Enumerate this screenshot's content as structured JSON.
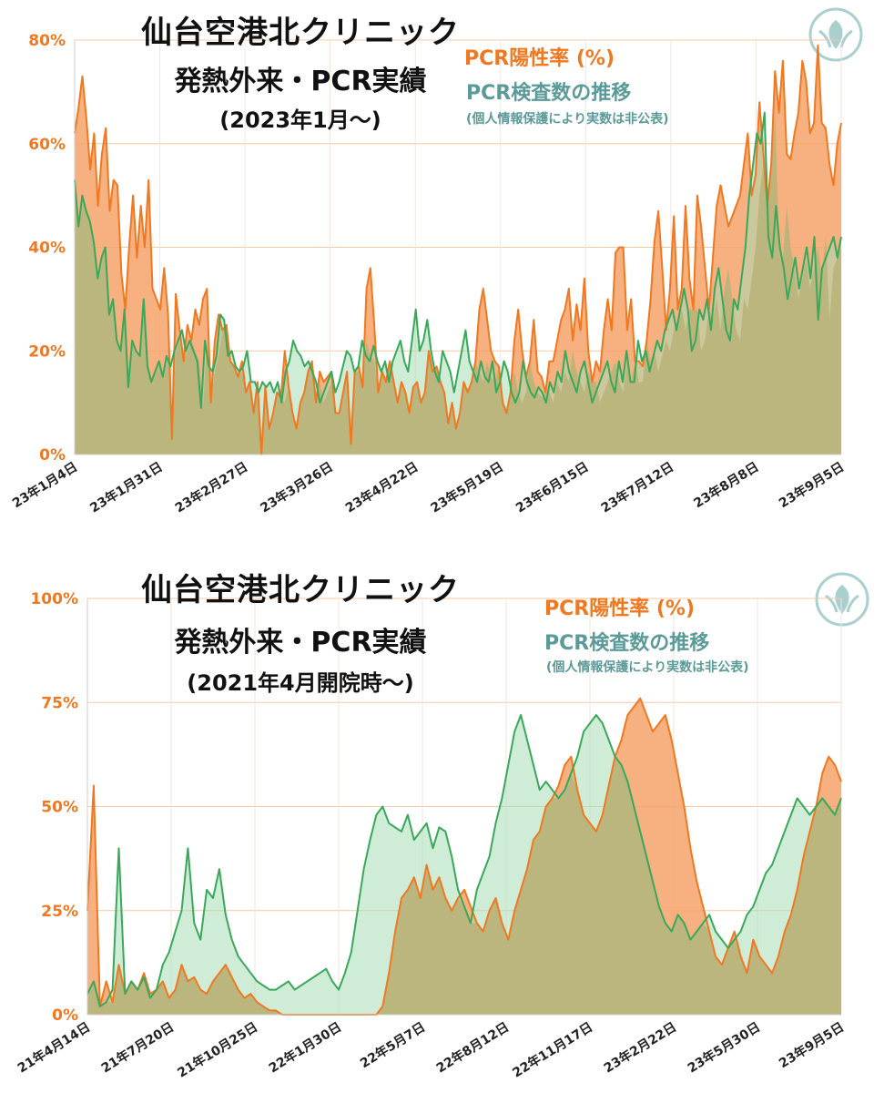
{
  "colors": {
    "positive_line": "#f07820",
    "positive_fill": "#f6a268",
    "tests_line": "#3aa85a",
    "tests_fill": "#a8dcb7",
    "overlap_fill": "#b9b47a",
    "legend_tests_text": "#5a9a98",
    "grid": "#f4c9a6",
    "axis_label": "#f07820",
    "logo": "#a9cfcf"
  },
  "icons": {
    "logo": "clinic-logo-icon"
  },
  "chart_data": [
    {
      "type": "area",
      "title": "仙台空港北クリニック",
      "subtitle": "発熱外来・PCR実績",
      "subtitle2": "(2023年1月〜)",
      "legend": {
        "positive": "PCR陽性率 (%)",
        "tests": "PCR検査数の推移",
        "note": "(個人情報保護により実数は非公表)"
      },
      "ylim": [
        0,
        80
      ],
      "yticks": [
        0,
        20,
        40,
        60,
        80
      ],
      "ytick_labels": [
        "0%",
        "20%",
        "40%",
        "60%",
        "80%"
      ],
      "xtick_labels": [
        "23年1月4日",
        "23年1月31日",
        "23年2月27日",
        "23年3月26日",
        "23年4月22日",
        "23年5月19日",
        "23年6月15日",
        "23年7月12日",
        "23年8月8日",
        "23年9月5日"
      ],
      "series": [
        {
          "name": "PCR陽性率 (%)",
          "values": [
            62,
            67,
            73,
            65,
            55,
            62,
            48,
            58,
            63,
            47,
            53,
            52,
            35,
            28,
            40,
            50,
            38,
            48,
            40,
            53,
            32,
            30,
            28,
            36,
            27,
            3,
            31,
            24,
            18,
            25,
            22,
            28,
            25,
            30,
            32,
            10,
            22,
            27,
            24,
            25,
            18,
            17,
            15,
            18,
            12,
            14,
            8,
            14,
            0,
            13,
            5,
            8,
            12,
            11,
            20,
            13,
            8,
            5,
            10,
            12,
            16,
            18,
            10,
            16,
            14,
            15,
            16,
            8,
            8,
            12,
            16,
            2,
            16,
            17,
            13,
            32,
            36,
            25,
            12,
            16,
            14,
            18,
            14,
            10,
            14,
            12,
            8,
            13,
            14,
            10,
            12,
            20,
            16,
            17,
            14,
            12,
            6,
            10,
            5,
            8,
            14,
            12,
            14,
            18,
            28,
            32,
            26,
            20,
            18,
            17,
            10,
            8,
            12,
            22,
            28,
            20,
            15,
            18,
            26,
            16,
            15,
            12,
            18,
            18,
            22,
            26,
            28,
            32,
            22,
            29,
            24,
            34,
            20,
            14,
            18,
            16,
            24,
            30,
            24,
            39,
            40,
            40,
            24,
            30,
            18,
            18,
            17,
            22,
            30,
            41,
            47,
            36,
            24,
            32,
            46,
            28,
            32,
            48,
            34,
            28,
            50,
            44,
            36,
            28,
            38,
            48,
            52,
            48,
            44,
            46,
            48,
            50,
            56,
            62,
            50,
            54,
            68,
            58,
            48,
            56,
            74,
            66,
            76,
            58,
            57,
            62,
            66,
            76,
            72,
            62,
            64,
            79,
            64,
            63,
            56,
            52,
            60,
            64
          ]
        },
        {
          "name": "PCR検査数の推移",
          "values": [
            53,
            44,
            50,
            47,
            45,
            41,
            34,
            38,
            40,
            27,
            30,
            22,
            20,
            28,
            13,
            22,
            20,
            19,
            30,
            17,
            14,
            16,
            18,
            15,
            19,
            17,
            20,
            22,
            24,
            20,
            22,
            20,
            18,
            9,
            22,
            17,
            16,
            19,
            27,
            26,
            19,
            20,
            17,
            16,
            17,
            20,
            14,
            14,
            12,
            14,
            13,
            14,
            12,
            14,
            10,
            16,
            18,
            22,
            20,
            19,
            17,
            18,
            16,
            14,
            10,
            12,
            14,
            16,
            12,
            14,
            17,
            20,
            19,
            16,
            17,
            22,
            19,
            18,
            21,
            18,
            16,
            18,
            14,
            18,
            20,
            22,
            18,
            16,
            22,
            28,
            20,
            22,
            26,
            20,
            16,
            14,
            20,
            18,
            16,
            12,
            16,
            20,
            24,
            18,
            16,
            14,
            18,
            15,
            14,
            18,
            12,
            14,
            18,
            16,
            12,
            10,
            12,
            18,
            14,
            12,
            11,
            13,
            12,
            10,
            14,
            12,
            16,
            14,
            20,
            16,
            14,
            12,
            16,
            18,
            14,
            10,
            12,
            14,
            16,
            18,
            14,
            12,
            18,
            14,
            20,
            14,
            14,
            22,
            18,
            20,
            16,
            19,
            22,
            20,
            24,
            26,
            28,
            24,
            28,
            32,
            28,
            20,
            22,
            28,
            26,
            30,
            24,
            32,
            36,
            30,
            24,
            22,
            30,
            28,
            34,
            40,
            50,
            56,
            62,
            60,
            66,
            42,
            38,
            48,
            40,
            36,
            30,
            34,
            38,
            32,
            36,
            40,
            34,
            42,
            26,
            36,
            38,
            40,
            42,
            38,
            42
          ]
        }
      ],
      "overlap_color_note": ""
    },
    {
      "type": "area",
      "title": "仙台空港北クリニック",
      "subtitle": "発熱外来・PCR実績",
      "subtitle2": "(2021年4月開院時〜)",
      "legend": {
        "positive": "PCR陽性率 (%)",
        "tests": "PCR検査数の推移",
        "note": "(個人情報保護により実数は非公表)"
      },
      "ylim": [
        0,
        100
      ],
      "yticks": [
        0,
        25,
        50,
        75,
        100
      ],
      "ytick_labels": [
        "0%",
        "25%",
        "50%",
        "75%",
        "100%"
      ],
      "xtick_labels": [
        "21年4月14日",
        "21年7月20日",
        "21年10月25日",
        "22年1月30日",
        "22年5月7日",
        "22年8月12日",
        "22年11月17日",
        "23年2月22日",
        "23年5月30日",
        "23年9月5日"
      ],
      "series": [
        {
          "name": "PCR陽性率 (%)",
          "values": [
            25,
            55,
            2,
            8,
            3,
            12,
            5,
            8,
            6,
            10,
            5,
            6,
            8,
            4,
            6,
            12,
            8,
            9,
            6,
            5,
            8,
            10,
            12,
            9,
            6,
            4,
            5,
            3,
            2,
            1,
            1,
            0,
            0,
            0,
            0,
            0,
            0,
            0,
            0,
            0,
            0,
            0,
            0,
            0,
            0,
            0,
            0,
            2,
            10,
            20,
            28,
            30,
            33,
            28,
            36,
            30,
            33,
            28,
            25,
            28,
            30,
            26,
            22,
            20,
            25,
            28,
            22,
            18,
            25,
            30,
            35,
            42,
            44,
            50,
            52,
            55,
            60,
            62,
            54,
            48,
            46,
            44,
            48,
            55,
            62,
            66,
            72,
            74,
            76,
            72,
            68,
            70,
            72,
            66,
            58,
            50,
            40,
            32,
            26,
            20,
            14,
            12,
            16,
            20,
            14,
            10,
            18,
            14,
            12,
            10,
            14,
            20,
            24,
            30,
            38,
            44,
            50,
            58,
            62,
            60,
            56
          ]
        },
        {
          "name": "PCR検査数の推移",
          "values": [
            5,
            8,
            2,
            3,
            6,
            40,
            5,
            8,
            6,
            9,
            4,
            6,
            12,
            15,
            20,
            25,
            40,
            22,
            18,
            30,
            28,
            35,
            24,
            18,
            14,
            12,
            10,
            8,
            7,
            6,
            6,
            7,
            8,
            6,
            7,
            8,
            9,
            10,
            11,
            8,
            6,
            10,
            15,
            25,
            35,
            42,
            48,
            50,
            46,
            45,
            44,
            48,
            42,
            44,
            46,
            40,
            45,
            44,
            38,
            30,
            26,
            22,
            30,
            34,
            38,
            46,
            52,
            60,
            68,
            72,
            66,
            60,
            54,
            56,
            54,
            52,
            54,
            58,
            62,
            68,
            70,
            72,
            70,
            66,
            62,
            60,
            56,
            50,
            44,
            38,
            32,
            26,
            22,
            20,
            24,
            22,
            18,
            20,
            22,
            24,
            20,
            18,
            16,
            18,
            20,
            24,
            26,
            30,
            34,
            36,
            40,
            44,
            48,
            52,
            50,
            48,
            50,
            52,
            50,
            48,
            52
          ]
        }
      ],
      "overlap_color_note": ""
    }
  ]
}
